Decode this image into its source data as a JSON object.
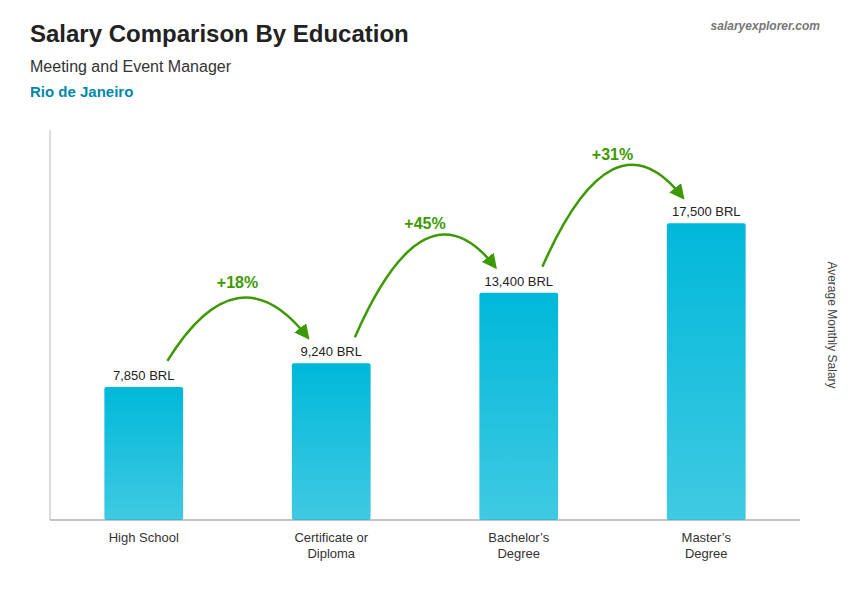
{
  "chart_data": {
    "type": "bar",
    "title": "Salary Comparison By Education",
    "subtitle": "Meeting and Event Manager",
    "annotations": [
      {
        "text": "Rio de Janeiro"
      },
      {
        "text": "salaryexplorer.com"
      },
      {
        "text": "+18%",
        "from": "High School",
        "to": "Certificate or\nDiploma",
        "color": "#3c9a00"
      },
      {
        "text": "+45%",
        "from": "Certificate or\nDiploma",
        "to": "Bachelor’s\nDegree",
        "color": "#3c9a00"
      },
      {
        "text": "+31%",
        "from": "Bachelor’s\nDegree",
        "to": "Master’s\nDegree",
        "color": "#3c9a00"
      }
    ],
    "ylabel": "Average Monthly Salary",
    "categories": [
      "High School",
      "Certificate or\nDiploma",
      "Bachelor’s\nDegree",
      "Master’s\nDegree"
    ],
    "values": [
      7850,
      9240,
      13400,
      17500
    ],
    "value_labels": [
      "7,850 BRL",
      "9,240 BRL",
      "13,400 BRL",
      "17,500 BRL"
    ],
    "data_labels": true,
    "color": "#00b8d9",
    "ylim": [
      0,
      23000
    ],
    "tick_labels": "x"
  }
}
